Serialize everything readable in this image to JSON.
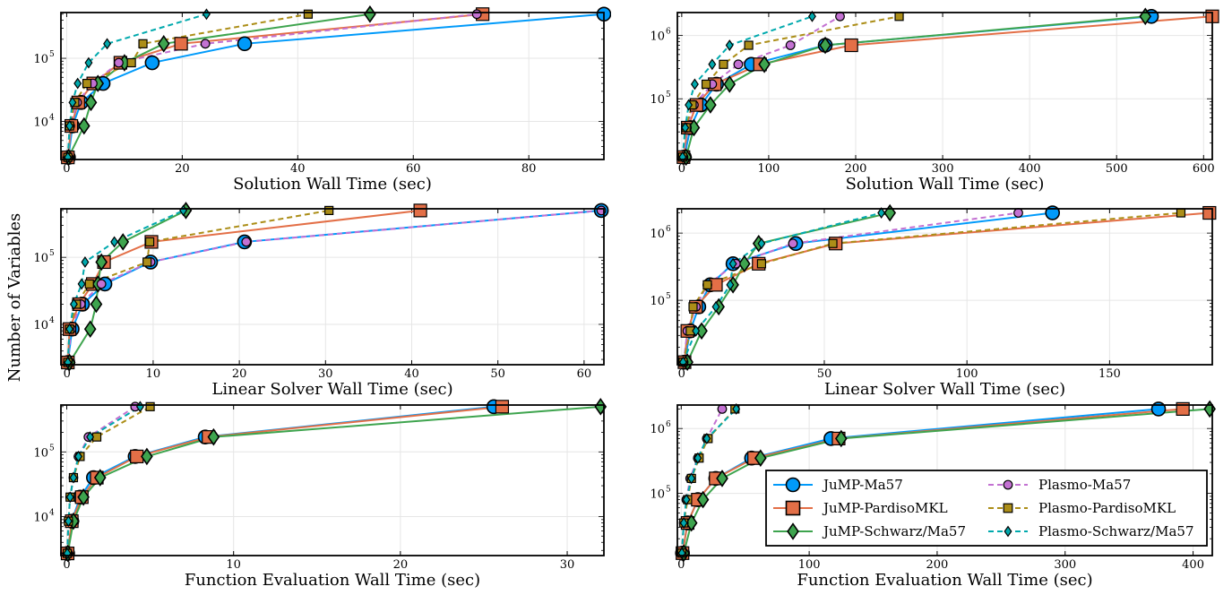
{
  "figure": {
    "ylabel": "Number of Variables"
  },
  "styles": {
    "JuMP-Ma57": {
      "color": "#009AFA",
      "marker": "circle",
      "dash": false,
      "big": true
    },
    "JuMP-PardisoMKL": {
      "color": "#E36F47",
      "marker": "square",
      "dash": false,
      "big": true
    },
    "JuMP-Schwarz/Ma57": {
      "color": "#3EA44E",
      "marker": "diamond",
      "dash": false,
      "big": true
    },
    "Plasmo-Ma57": {
      "color": "#C371D2",
      "marker": "circle",
      "dash": true,
      "big": false
    },
    "Plasmo-PardisoMKL": {
      "color": "#AC8E18",
      "marker": "square",
      "dash": true,
      "big": false
    },
    "Plasmo-Schwarz/Ma57": {
      "color": "#00A9AD",
      "marker": "diamond",
      "dash": true,
      "big": false
    }
  },
  "legend": {
    "entries": [
      "JuMP-Ma57",
      "JuMP-PardisoMKL",
      "JuMP-Schwarz/Ma57",
      "Plasmo-Ma57",
      "Plasmo-PardisoMKL",
      "Plasmo-Schwarz/Ma57"
    ]
  },
  "chart_data": [
    {
      "type": "line",
      "xlabel": "Solution Wall Time (sec)",
      "xlim": [
        -1,
        93
      ],
      "ylim": [
        2500,
        530000
      ],
      "yscale": "log",
      "xticks": [
        0,
        20,
        40,
        60,
        80
      ],
      "yticks": [
        {
          "v": 10000,
          "label": "10",
          "exp": "4"
        },
        {
          "v": 100000,
          "label": "10",
          "exp": "5"
        }
      ],
      "y": [
        2700,
        8500,
        20000,
        40000,
        85000,
        170000,
        500000
      ],
      "series": [
        {
          "name": "JuMP-Ma57",
          "x": [
            0.3,
            1.0,
            2.5,
            6.3,
            14.8,
            30.8,
            93.0
          ]
        },
        {
          "name": "JuMP-PardisoMKL",
          "x": [
            0.2,
            0.8,
            2.0,
            4.6,
            9.3,
            19.8,
            72.0
          ]
        },
        {
          "name": "JuMP-Schwarz/Ma57",
          "x": [
            0.3,
            3.0,
            4.2,
            5.4,
            10.0,
            16.8,
            52.5
          ]
        },
        {
          "name": "Plasmo-Ma57",
          "x": [
            0.2,
            0.6,
            1.8,
            4.5,
            9.0,
            24.0,
            71.0
          ]
        },
        {
          "name": "Plasmo-PardisoMKL",
          "x": [
            0.2,
            0.5,
            1.4,
            3.5,
            11.2,
            13.2,
            41.8
          ]
        },
        {
          "name": "Plasmo-Schwarz/Ma57",
          "x": [
            0.2,
            0.5,
            1.0,
            1.9,
            3.8,
            7.0,
            24.2
          ]
        }
      ]
    },
    {
      "type": "line",
      "xlabel": "Solution Wall Time (sec)",
      "xlim": [
        -5,
        610
      ],
      "ylim": [
        11000,
        2300000
      ],
      "yscale": "log",
      "xticks": [
        0,
        100,
        200,
        300,
        400,
        500,
        600
      ],
      "yticks": [
        {
          "v": 100000,
          "label": "10",
          "exp": "5"
        },
        {
          "v": 1000000,
          "label": "10",
          "exp": "6"
        }
      ],
      "y": [
        12000,
        35000,
        80000,
        170000,
        350000,
        700000,
        2000000
      ],
      "series": [
        {
          "name": "JuMP-Ma57",
          "x": [
            3,
            10,
            22,
            40,
            80,
            165,
            540
          ]
        },
        {
          "name": "JuMP-PardisoMKL",
          "x": [
            2,
            7,
            17,
            38,
            90,
            195,
            610
          ]
        },
        {
          "name": "JuMP-Schwarz/Ma57",
          "x": [
            5,
            14,
            33,
            55,
            95,
            165,
            533
          ]
        },
        {
          "name": "Plasmo-Ma57",
          "x": [
            2,
            6,
            14,
            35,
            65,
            125,
            182
          ]
        },
        {
          "name": "Plasmo-PardisoMKL",
          "x": [
            1,
            5,
            12,
            28,
            48,
            77,
            250
          ]
        },
        {
          "name": "Plasmo-Schwarz/Ma57",
          "x": [
            1,
            4,
            8,
            15,
            35,
            55,
            150
          ]
        }
      ]
    },
    {
      "type": "line",
      "xlabel": "Linear Solver Wall Time (sec)",
      "xlim": [
        -0.7,
        62.3
      ],
      "ylim": [
        2500,
        530000
      ],
      "yscale": "log",
      "xticks": [
        0,
        10,
        20,
        30,
        40,
        50,
        60
      ],
      "yticks": [
        {
          "v": 10000,
          "label": "10",
          "exp": "4"
        },
        {
          "v": 100000,
          "label": "10",
          "exp": "5"
        }
      ],
      "y": [
        2700,
        8500,
        20000,
        40000,
        85000,
        170000,
        500000
      ],
      "series": [
        {
          "name": "JuMP-Ma57",
          "x": [
            0.1,
            0.6,
            1.8,
            4.4,
            9.7,
            20.6,
            62.0
          ]
        },
        {
          "name": "JuMP-PardisoMKL",
          "x": [
            0.1,
            0.3,
            1.4,
            3.0,
            4.3,
            9.8,
            41.0
          ]
        },
        {
          "name": "JuMP-Schwarz/Ma57",
          "x": [
            0.3,
            2.7,
            3.4,
            3.6,
            4.0,
            6.5,
            13.8
          ]
        },
        {
          "name": "Plasmo-Ma57",
          "x": [
            0.1,
            0.5,
            1.6,
            4.0,
            9.7,
            20.8,
            62.0
          ]
        },
        {
          "name": "Plasmo-PardisoMKL",
          "x": [
            0.1,
            0.3,
            1.1,
            2.6,
            9.3,
            9.6,
            30.4
          ]
        },
        {
          "name": "Plasmo-Schwarz/Ma57",
          "x": [
            0.1,
            0.3,
            0.8,
            1.7,
            2.1,
            5.5,
            13.5
          ]
        }
      ]
    },
    {
      "type": "line",
      "xlabel": "Linear Solver Wall Time (sec)",
      "xlim": [
        -1.5,
        186
      ],
      "ylim": [
        11000,
        2300000
      ],
      "yscale": "log",
      "xticks": [
        0,
        50,
        100,
        150
      ],
      "yticks": [
        {
          "v": 100000,
          "label": "10",
          "exp": "5"
        },
        {
          "v": 1000000,
          "label": "10",
          "exp": "6"
        }
      ],
      "y": [
        12000,
        35000,
        80000,
        170000,
        350000,
        700000,
        2000000
      ],
      "series": [
        {
          "name": "JuMP-Ma57",
          "x": [
            1,
            3,
            6,
            10,
            18,
            40,
            130
          ]
        },
        {
          "name": "JuMP-PardisoMKL",
          "x": [
            1,
            2,
            5,
            12,
            27,
            54,
            185
          ]
        },
        {
          "name": "JuMP-Schwarz/Ma57",
          "x": [
            2,
            7,
            13,
            18,
            22,
            27,
            73
          ]
        },
        {
          "name": "Plasmo-Ma57",
          "x": [
            0.7,
            2,
            5,
            9,
            19,
            39,
            118
          ]
        },
        {
          "name": "Plasmo-PardisoMKL",
          "x": [
            0.5,
            3,
            4,
            9,
            28,
            53,
            175
          ]
        },
        {
          "name": "Plasmo-Schwarz/Ma57",
          "x": [
            0.5,
            5,
            12,
            17,
            18,
            28,
            70
          ]
        }
      ]
    },
    {
      "type": "line",
      "xlabel": "Function Evaluation Wall Time (sec)",
      "xlim": [
        -0.35,
        32.2
      ],
      "ylim": [
        2500,
        530000
      ],
      "yscale": "log",
      "xticks": [
        0,
        10,
        20,
        30
      ],
      "yticks": [
        {
          "v": 10000,
          "label": "10",
          "exp": "4"
        },
        {
          "v": 100000,
          "label": "10",
          "exp": "5"
        }
      ],
      "y": [
        2700,
        8500,
        20000,
        40000,
        85000,
        170000,
        500000
      ],
      "series": [
        {
          "name": "JuMP-Ma57",
          "x": [
            0.05,
            0.3,
            0.8,
            1.6,
            4.1,
            8.3,
            25.6
          ]
        },
        {
          "name": "JuMP-PardisoMKL",
          "x": [
            0.05,
            0.3,
            0.9,
            1.8,
            4.2,
            8.5,
            26.1
          ]
        },
        {
          "name": "JuMP-Schwarz/Ma57",
          "x": [
            0.06,
            0.4,
            1.0,
            2.0,
            4.8,
            8.8,
            32.0
          ]
        },
        {
          "name": "Plasmo-Ma57",
          "x": [
            0.03,
            0.1,
            0.2,
            0.4,
            0.7,
            1.3,
            4.1
          ]
        },
        {
          "name": "Plasmo-PardisoMKL",
          "x": [
            0.03,
            0.1,
            0.2,
            0.4,
            0.8,
            1.8,
            5.0
          ]
        },
        {
          "name": "Plasmo-Schwarz/Ma57",
          "x": [
            0.03,
            0.1,
            0.2,
            0.4,
            0.7,
            1.4,
            4.4
          ]
        }
      ]
    },
    {
      "type": "line",
      "xlabel": "Function Evaluation Wall Time (sec)",
      "xlim": [
        -3,
        415
      ],
      "ylim": [
        11000,
        2300000
      ],
      "yscale": "log",
      "xticks": [
        0,
        100,
        200,
        300,
        400
      ],
      "yticks": [
        {
          "v": 100000,
          "label": "10",
          "exp": "5"
        },
        {
          "v": 1000000,
          "label": "10",
          "exp": "6"
        }
      ],
      "y": [
        12000,
        35000,
        80000,
        170000,
        350000,
        700000,
        2000000
      ],
      "series": [
        {
          "name": "JuMP-Ma57",
          "x": [
            1,
            5,
            13,
            27,
            55,
            117,
            373
          ]
        },
        {
          "name": "JuMP-PardisoMKL",
          "x": [
            1,
            5,
            13,
            27,
            57,
            123,
            392
          ]
        },
        {
          "name": "JuMP-Schwarz/Ma57",
          "x": [
            2,
            8,
            17,
            32,
            62,
            125,
            413
          ]
        },
        {
          "name": "Plasmo-Ma57",
          "x": [
            0.5,
            2,
            4,
            7,
            13,
            20,
            32
          ]
        },
        {
          "name": "Plasmo-PardisoMKL",
          "x": [
            0.5,
            2,
            5,
            8,
            14,
            21,
            42
          ]
        },
        {
          "name": "Plasmo-Schwarz/Ma57",
          "x": [
            0.5,
            2,
            4,
            8,
            13,
            20,
            43
          ]
        }
      ]
    }
  ]
}
